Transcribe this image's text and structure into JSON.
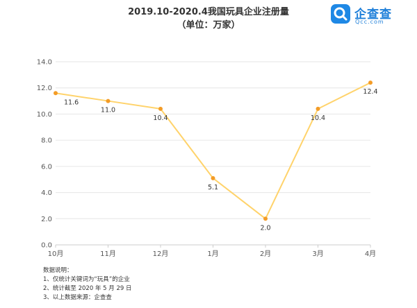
{
  "header": {
    "title": "2019.10-2020.4我国玩具企业注册量",
    "subtitle": "（单位：万家）"
  },
  "logo": {
    "name": "企查查",
    "domain": "Qcc.com",
    "color": "#1e88e5"
  },
  "notes": {
    "heading": "数据说明：",
    "items": [
      "1、仅统计关键词为“玩具”的企业",
      "2、统计截至 2020 年 5 月 29 日",
      "3、以上数据来源：企查查"
    ]
  },
  "chart_data": {
    "type": "line",
    "categories": [
      "10月",
      "11月",
      "12月",
      "1月",
      "2月",
      "3月",
      "4月"
    ],
    "series": [
      {
        "values": [
          11.6,
          11.0,
          10.4,
          5.1,
          2.0,
          10.4,
          12.4
        ],
        "labels": [
          "11.6",
          "11.0",
          "10.4",
          "5.1",
          "2.0",
          "10.4",
          "12.4"
        ],
        "line_color": "#ffd36b",
        "marker_color": "#f39c27"
      }
    ],
    "ylim": [
      0,
      14
    ],
    "yticks": [
      0,
      2,
      4,
      6,
      8,
      10,
      12,
      14
    ],
    "ytick_labels": [
      "0.0",
      "2.0",
      "4.0",
      "6.0",
      "8.0",
      "10.0",
      "12.0",
      "14.0"
    ],
    "grid": true,
    "grid_color": "#e6e6e6",
    "legend": "none"
  }
}
